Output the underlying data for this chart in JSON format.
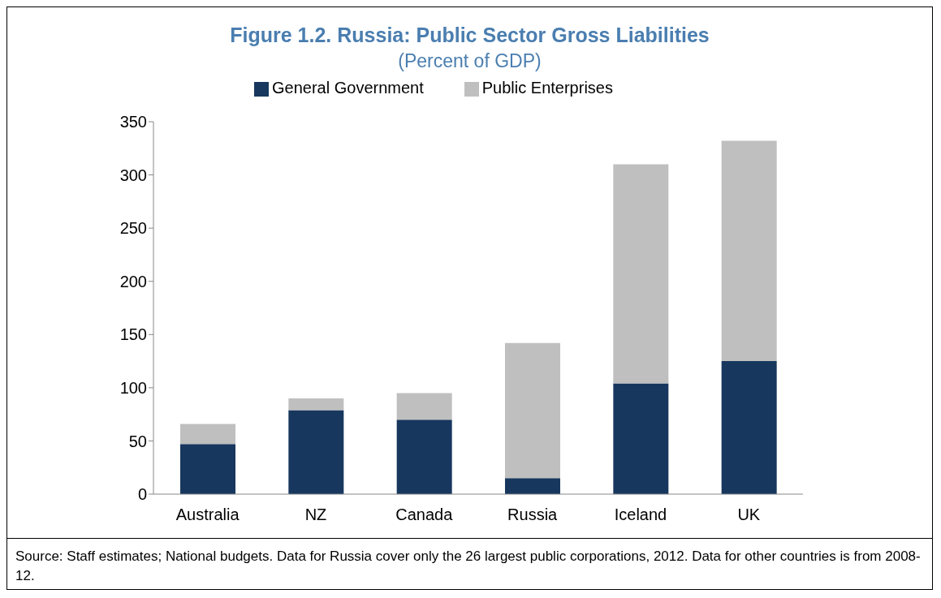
{
  "chart_data": {
    "type": "bar",
    "title": "Figure 1.2. Russia: Public Sector Gross Liabilities",
    "subtitle": "(Percent of GDP)",
    "categories": [
      "Australia",
      "NZ",
      "Canada",
      "Russia",
      "Iceland",
      "UK"
    ],
    "series": [
      {
        "name": "General Government",
        "color": "#17375e",
        "values": [
          47,
          79,
          70,
          15,
          104,
          125
        ]
      },
      {
        "name": "Public Enterprises",
        "color": "#bfbfbf",
        "values": [
          19,
          11,
          25,
          127,
          206,
          207
        ]
      }
    ],
    "stacked": true,
    "ylim": [
      0,
      350
    ],
    "yticks": [
      0,
      50,
      100,
      150,
      200,
      250,
      300,
      350
    ],
    "grid": false,
    "legend": "top",
    "annotations": [
      "Source: Staff estimates; National budgets. Data for Russia cover only the 26 largest public corporations, 2012. Data for other countries is from 2008-12."
    ]
  }
}
